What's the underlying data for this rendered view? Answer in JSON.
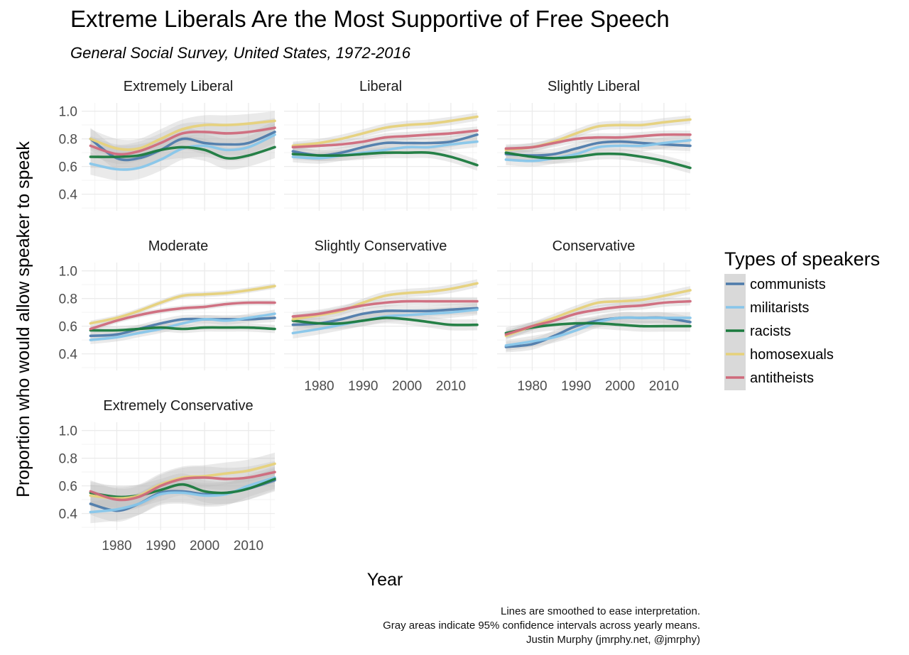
{
  "colors": {
    "communists": "#4e7bab",
    "militarists": "#87c6ea",
    "racists": "#1b7a3e",
    "homosexuals": "#e6d17a",
    "antitheists": "#cf6a7c",
    "ribbon": "#bdbdbd",
    "panel_bg": "#ffffff",
    "grid": "#ebebeb"
  },
  "chart_data": {
    "type": "line",
    "title": "Extreme Liberals Are the Most Supportive of Free Speech",
    "subtitle": "General Social Survey, United States, 1972-2016",
    "xlabel": "Year",
    "ylabel": "Proportion who would allow speaker to speak",
    "xlim": [
      1972,
      2016
    ],
    "ylim": [
      0.28,
      1.06
    ],
    "x_ticks": [
      1980,
      1990,
      2000,
      2010
    ],
    "y_ticks": [
      0.4,
      0.6,
      0.8,
      1.0
    ],
    "x_tick_labels": [
      "1980",
      "1990",
      "2000",
      "2010"
    ],
    "y_tick_labels": [
      "0.4",
      "0.6",
      "0.8",
      "1.0"
    ],
    "grid": true,
    "legend": {
      "title": "Types of speakers",
      "placement": "right",
      "entries": [
        "communists",
        "militarists",
        "racists",
        "homosexuals",
        "antitheists"
      ]
    },
    "x": [
      1974,
      1980,
      1985,
      1990,
      1995,
      2000,
      2005,
      2010,
      2016
    ],
    "panels": [
      {
        "name": "Extremely Liberal",
        "series": [
          {
            "name": "communists",
            "values": [
              0.8,
              0.66,
              0.66,
              0.72,
              0.8,
              0.77,
              0.76,
              0.77,
              0.85
            ],
            "band": 0.08
          },
          {
            "name": "militarists",
            "values": [
              0.62,
              0.58,
              0.59,
              0.65,
              0.73,
              0.75,
              0.72,
              0.74,
              0.83
            ],
            "band": 0.08
          },
          {
            "name": "racists",
            "values": [
              0.67,
              0.67,
              0.68,
              0.72,
              0.74,
              0.72,
              0.66,
              0.68,
              0.74
            ],
            "band": 0.08
          },
          {
            "name": "homosexuals",
            "values": [
              0.8,
              0.73,
              0.73,
              0.8,
              0.87,
              0.9,
              0.9,
              0.91,
              0.93
            ],
            "band": 0.07
          },
          {
            "name": "antitheists",
            "values": [
              0.75,
              0.69,
              0.71,
              0.77,
              0.84,
              0.85,
              0.84,
              0.85,
              0.88
            ],
            "band": 0.07
          }
        ]
      },
      {
        "name": "Liberal",
        "series": [
          {
            "name": "communists",
            "values": [
              0.71,
              0.68,
              0.7,
              0.74,
              0.77,
              0.77,
              0.77,
              0.78,
              0.83
            ],
            "band": 0.04
          },
          {
            "name": "militarists",
            "values": [
              0.67,
              0.66,
              0.68,
              0.7,
              0.72,
              0.74,
              0.74,
              0.76,
              0.78
            ],
            "band": 0.04
          },
          {
            "name": "racists",
            "values": [
              0.69,
              0.68,
              0.68,
              0.69,
              0.7,
              0.7,
              0.7,
              0.67,
              0.61
            ],
            "band": 0.04
          },
          {
            "name": "homosexuals",
            "values": [
              0.75,
              0.77,
              0.8,
              0.84,
              0.88,
              0.9,
              0.91,
              0.93,
              0.96
            ],
            "band": 0.03
          },
          {
            "name": "antitheists",
            "values": [
              0.74,
              0.75,
              0.76,
              0.78,
              0.81,
              0.82,
              0.83,
              0.84,
              0.86
            ],
            "band": 0.03
          }
        ]
      },
      {
        "name": "Slightly Liberal",
        "series": [
          {
            "name": "communists",
            "values": [
              0.69,
              0.68,
              0.69,
              0.73,
              0.77,
              0.78,
              0.77,
              0.76,
              0.75
            ],
            "band": 0.04
          },
          {
            "name": "militarists",
            "values": [
              0.65,
              0.64,
              0.66,
              0.69,
              0.74,
              0.75,
              0.75,
              0.77,
              0.79
            ],
            "band": 0.04
          },
          {
            "name": "racists",
            "values": [
              0.7,
              0.67,
              0.66,
              0.67,
              0.69,
              0.69,
              0.67,
              0.64,
              0.59
            ],
            "band": 0.04
          },
          {
            "name": "homosexuals",
            "values": [
              0.72,
              0.74,
              0.78,
              0.84,
              0.89,
              0.9,
              0.9,
              0.92,
              0.94
            ],
            "band": 0.03
          },
          {
            "name": "antitheists",
            "values": [
              0.73,
              0.74,
              0.77,
              0.8,
              0.81,
              0.81,
              0.82,
              0.83,
              0.83
            ],
            "band": 0.03
          }
        ]
      },
      {
        "name": "Moderate",
        "series": [
          {
            "name": "communists",
            "values": [
              0.53,
              0.54,
              0.58,
              0.62,
              0.65,
              0.65,
              0.65,
              0.65,
              0.66
            ],
            "band": 0.03
          },
          {
            "name": "militarists",
            "values": [
              0.5,
              0.52,
              0.55,
              0.58,
              0.62,
              0.65,
              0.64,
              0.66,
              0.69
            ],
            "band": 0.03
          },
          {
            "name": "racists",
            "values": [
              0.57,
              0.57,
              0.58,
              0.59,
              0.58,
              0.59,
              0.59,
              0.59,
              0.58
            ],
            "band": 0.03
          },
          {
            "name": "homosexuals",
            "values": [
              0.62,
              0.66,
              0.71,
              0.77,
              0.82,
              0.83,
              0.84,
              0.86,
              0.89
            ],
            "band": 0.02
          },
          {
            "name": "antitheists",
            "values": [
              0.58,
              0.64,
              0.68,
              0.71,
              0.73,
              0.74,
              0.76,
              0.77,
              0.77
            ],
            "band": 0.02
          }
        ]
      },
      {
        "name": "Slightly Conservative",
        "series": [
          {
            "name": "communists",
            "values": [
              0.61,
              0.62,
              0.65,
              0.69,
              0.71,
              0.71,
              0.71,
              0.72,
              0.73
            ],
            "band": 0.04
          },
          {
            "name": "militarists",
            "values": [
              0.55,
              0.58,
              0.61,
              0.64,
              0.67,
              0.68,
              0.69,
              0.7,
              0.72
            ],
            "band": 0.04
          },
          {
            "name": "racists",
            "values": [
              0.64,
              0.62,
              0.62,
              0.64,
              0.66,
              0.65,
              0.63,
              0.61,
              0.61
            ],
            "band": 0.04
          },
          {
            "name": "homosexuals",
            "values": [
              0.65,
              0.68,
              0.71,
              0.77,
              0.82,
              0.84,
              0.85,
              0.87,
              0.91
            ],
            "band": 0.03
          },
          {
            "name": "antitheists",
            "values": [
              0.67,
              0.69,
              0.72,
              0.75,
              0.77,
              0.78,
              0.78,
              0.78,
              0.78
            ],
            "band": 0.03
          }
        ]
      },
      {
        "name": "Conservative",
        "series": [
          {
            "name": "communists",
            "values": [
              0.45,
              0.47,
              0.53,
              0.6,
              0.64,
              0.66,
              0.66,
              0.66,
              0.63
            ],
            "band": 0.04
          },
          {
            "name": "militarists",
            "values": [
              0.46,
              0.49,
              0.52,
              0.57,
              0.63,
              0.66,
              0.66,
              0.66,
              0.66
            ],
            "band": 0.04
          },
          {
            "name": "racists",
            "values": [
              0.55,
              0.59,
              0.61,
              0.62,
              0.62,
              0.61,
              0.6,
              0.6,
              0.6
            ],
            "band": 0.04
          },
          {
            "name": "homosexuals",
            "values": [
              0.53,
              0.6,
              0.66,
              0.72,
              0.77,
              0.78,
              0.79,
              0.82,
              0.86
            ],
            "band": 0.03
          },
          {
            "name": "antitheists",
            "values": [
              0.54,
              0.6,
              0.64,
              0.69,
              0.72,
              0.74,
              0.75,
              0.77,
              0.78
            ],
            "band": 0.03
          }
        ]
      },
      {
        "name": "Extremely Conservative",
        "series": [
          {
            "name": "communists",
            "values": [
              0.47,
              0.42,
              0.47,
              0.55,
              0.56,
              0.54,
              0.55,
              0.58,
              0.64
            ],
            "band": 0.08
          },
          {
            "name": "militarists",
            "values": [
              0.41,
              0.43,
              0.47,
              0.54,
              0.55,
              0.53,
              0.54,
              0.6,
              0.66
            ],
            "band": 0.08
          },
          {
            "name": "racists",
            "values": [
              0.55,
              0.52,
              0.53,
              0.57,
              0.61,
              0.56,
              0.55,
              0.58,
              0.65
            ],
            "band": 0.08
          },
          {
            "name": "homosexuals",
            "values": [
              0.53,
              0.51,
              0.53,
              0.61,
              0.66,
              0.67,
              0.69,
              0.71,
              0.76
            ],
            "band": 0.08
          },
          {
            "name": "antitheists",
            "values": [
              0.56,
              0.5,
              0.52,
              0.6,
              0.65,
              0.66,
              0.65,
              0.66,
              0.7
            ],
            "band": 0.08
          }
        ]
      }
    ],
    "caption": [
      "Lines are smoothed to ease interpretation.",
      "Gray areas indicate 95% confidence intervals across yearly means.",
      "Justin Murphy (jmrphy.net, @jmrphy)"
    ]
  }
}
